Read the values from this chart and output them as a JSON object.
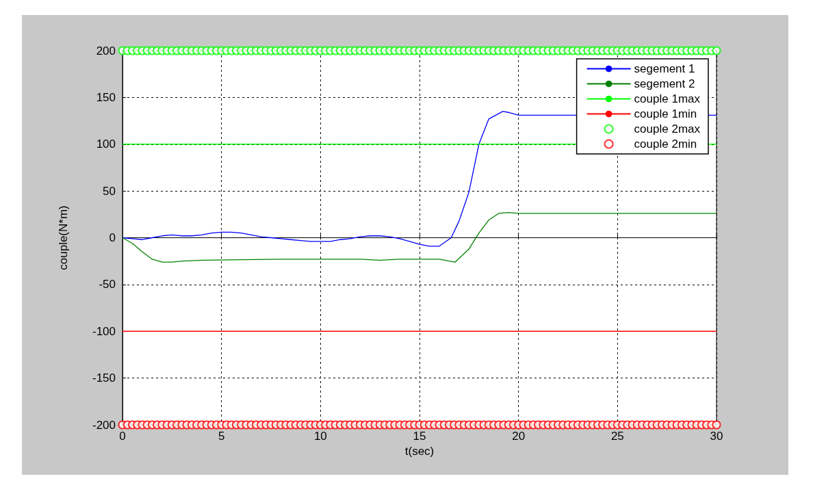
{
  "chart_data": {
    "type": "line",
    "xlabel": "t(sec)",
    "ylabel": "couple(N*m)",
    "xlim": [
      0,
      30
    ],
    "xticks": [
      0,
      5,
      10,
      15,
      20,
      25,
      30
    ],
    "ylim": [
      -200,
      200
    ],
    "yticks": [
      -200,
      -150,
      -100,
      -50,
      0,
      50,
      100,
      150,
      200
    ],
    "grid": true,
    "legend": "top right",
    "marker": "none",
    "series": [
      {
        "name": "segement 1",
        "color": "#0000ff",
        "x": [
          0,
          0.5,
          1,
          1.5,
          2,
          2.5,
          3,
          3.5,
          4,
          4.5,
          5,
          5.5,
          6,
          6.5,
          7,
          7.5,
          8,
          8.5,
          9,
          9.5,
          10,
          10.5,
          11,
          11.5,
          12,
          12.5,
          13,
          13.5,
          14,
          14.5,
          15,
          15.5,
          16,
          16.6,
          17,
          17.5,
          18,
          18.5,
          19.2,
          19.5,
          20,
          30
        ],
        "values": [
          0,
          -1,
          -2,
          0,
          2,
          3,
          2,
          2,
          3,
          5,
          6,
          6,
          5,
          3,
          1,
          0,
          -1,
          -2,
          -3,
          -4,
          -4,
          -4,
          -2,
          -1,
          1,
          2,
          2,
          1,
          -1,
          -4,
          -7,
          -9,
          -9,
          0,
          18,
          49,
          100,
          127,
          135,
          134,
          131,
          131
        ]
      },
      {
        "name": "segement 2",
        "color": "#008000",
        "x": [
          0,
          0.5,
          1,
          1.5,
          2,
          2.5,
          3,
          4,
          8,
          12,
          13,
          14,
          16,
          16.5,
          16.8,
          17.5,
          18,
          18.5,
          19,
          19.5,
          20,
          30
        ],
        "values": [
          0,
          -6,
          -15,
          -23,
          -26,
          -26,
          -25,
          -24,
          -23,
          -23,
          -24,
          -23,
          -23,
          -25,
          -26,
          -12,
          5,
          19,
          26,
          27,
          26,
          26
        ]
      },
      {
        "name": "couple 1max",
        "color": "#00ff00",
        "x": [
          0,
          30
        ],
        "values": [
          100,
          100
        ]
      },
      {
        "name": "couple 1min",
        "color": "#ff0000",
        "x": [
          0,
          30
        ],
        "values": [
          -100,
          -100
        ]
      },
      {
        "name": "couple 2max",
        "color": "#00ff00",
        "type": "scatter",
        "marker": "circle",
        "x": [
          0,
          0.25,
          0.5,
          0.75,
          1,
          1.25,
          1.5,
          1.75,
          2,
          2.25,
          2.5,
          2.75,
          3,
          3.25,
          3.5,
          3.75,
          4,
          4.25,
          4.5,
          4.75,
          5,
          5.25,
          5.5,
          5.75,
          6,
          6.25,
          6.5,
          6.75,
          7,
          7.25,
          7.5,
          7.75,
          8,
          8.25,
          8.5,
          8.75,
          9,
          9.25,
          9.5,
          9.75,
          10,
          10.25,
          10.5,
          10.75,
          11,
          11.25,
          11.5,
          11.75,
          12,
          12.25,
          12.5,
          12.75,
          13,
          13.25,
          13.5,
          13.75,
          14,
          14.25,
          14.5,
          14.75,
          15,
          15.25,
          15.5,
          15.75,
          16,
          16.25,
          16.5,
          16.75,
          17,
          17.25,
          17.5,
          17.75,
          18,
          18.25,
          18.5,
          18.75,
          19,
          19.25,
          19.5,
          19.75,
          20,
          20.25,
          20.5,
          20.75,
          21,
          21.25,
          21.5,
          21.75,
          22,
          22.25,
          22.5,
          22.75,
          23,
          23.25,
          23.5,
          23.75,
          24,
          24.25,
          24.5,
          24.75,
          25,
          25.25,
          25.5,
          25.75,
          26,
          26.25,
          26.5,
          26.75,
          27,
          27.25,
          27.5,
          27.75,
          28,
          28.25,
          28.5,
          28.75,
          29,
          29.25,
          29.5,
          29.75,
          30
        ],
        "values": [
          200,
          200,
          200,
          200,
          200,
          200,
          200,
          200,
          200,
          200,
          200,
          200,
          200,
          200,
          200,
          200,
          200,
          200,
          200,
          200,
          200,
          200,
          200,
          200,
          200,
          200,
          200,
          200,
          200,
          200,
          200,
          200,
          200,
          200,
          200,
          200,
          200,
          200,
          200,
          200,
          200,
          200,
          200,
          200,
          200,
          200,
          200,
          200,
          200,
          200,
          200,
          200,
          200,
          200,
          200,
          200,
          200,
          200,
          200,
          200,
          200,
          200,
          200,
          200,
          200,
          200,
          200,
          200,
          200,
          200,
          200,
          200,
          200,
          200,
          200,
          200,
          200,
          200,
          200,
          200,
          200,
          200,
          200,
          200,
          200,
          200,
          200,
          200,
          200,
          200,
          200,
          200,
          200,
          200,
          200,
          200,
          200,
          200,
          200,
          200,
          200,
          200,
          200,
          200,
          200,
          200,
          200,
          200,
          200,
          200,
          200,
          200,
          200,
          200,
          200,
          200,
          200,
          200,
          200,
          200,
          200
        ]
      },
      {
        "name": "couple 2min",
        "color": "#ff0000",
        "type": "scatter",
        "marker": "circle",
        "x": [
          0,
          0.25,
          0.5,
          0.75,
          1,
          1.25,
          1.5,
          1.75,
          2,
          2.25,
          2.5,
          2.75,
          3,
          3.25,
          3.5,
          3.75,
          4,
          4.25,
          4.5,
          4.75,
          5,
          5.25,
          5.5,
          5.75,
          6,
          6.25,
          6.5,
          6.75,
          7,
          7.25,
          7.5,
          7.75,
          8,
          8.25,
          8.5,
          8.75,
          9,
          9.25,
          9.5,
          9.75,
          10,
          10.25,
          10.5,
          10.75,
          11,
          11.25,
          11.5,
          11.75,
          12,
          12.25,
          12.5,
          12.75,
          13,
          13.25,
          13.5,
          13.75,
          14,
          14.25,
          14.5,
          14.75,
          15,
          15.25,
          15.5,
          15.75,
          16,
          16.25,
          16.5,
          16.75,
          17,
          17.25,
          17.5,
          17.75,
          18,
          18.25,
          18.5,
          18.75,
          19,
          19.25,
          19.5,
          19.75,
          20,
          20.25,
          20.5,
          20.75,
          21,
          21.25,
          21.5,
          21.75,
          22,
          22.25,
          22.5,
          22.75,
          23,
          23.25,
          23.5,
          23.75,
          24,
          24.25,
          24.5,
          24.75,
          25,
          25.25,
          25.5,
          25.75,
          26,
          26.25,
          26.5,
          26.75,
          27,
          27.25,
          27.5,
          27.75,
          28,
          28.25,
          28.5,
          28.75,
          29,
          29.25,
          29.5,
          29.75,
          30
        ],
        "values": [
          -200,
          -200,
          -200,
          -200,
          -200,
          -200,
          -200,
          -200,
          -200,
          -200,
          -200,
          -200,
          -200,
          -200,
          -200,
          -200,
          -200,
          -200,
          -200,
          -200,
          -200,
          -200,
          -200,
          -200,
          -200,
          -200,
          -200,
          -200,
          -200,
          -200,
          -200,
          -200,
          -200,
          -200,
          -200,
          -200,
          -200,
          -200,
          -200,
          -200,
          -200,
          -200,
          -200,
          -200,
          -200,
          -200,
          -200,
          -200,
          -200,
          -200,
          -200,
          -200,
          -200,
          -200,
          -200,
          -200,
          -200,
          -200,
          -200,
          -200,
          -200,
          -200,
          -200,
          -200,
          -200,
          -200,
          -200,
          -200,
          -200,
          -200,
          -200,
          -200,
          -200,
          -200,
          -200,
          -200,
          -200,
          -200,
          -200,
          -200,
          -200,
          -200,
          -200,
          -200,
          -200,
          -200,
          -200,
          -200,
          -200,
          -200,
          -200,
          -200,
          -200,
          -200,
          -200,
          -200,
          -200,
          -200,
          -200,
          -200,
          -200,
          -200,
          -200,
          -200,
          -200,
          -200,
          -200,
          -200,
          -200,
          -200,
          -200,
          -200,
          -200,
          -200,
          -200,
          -200,
          -200,
          -200,
          -200,
          -200,
          -200
        ]
      }
    ]
  }
}
